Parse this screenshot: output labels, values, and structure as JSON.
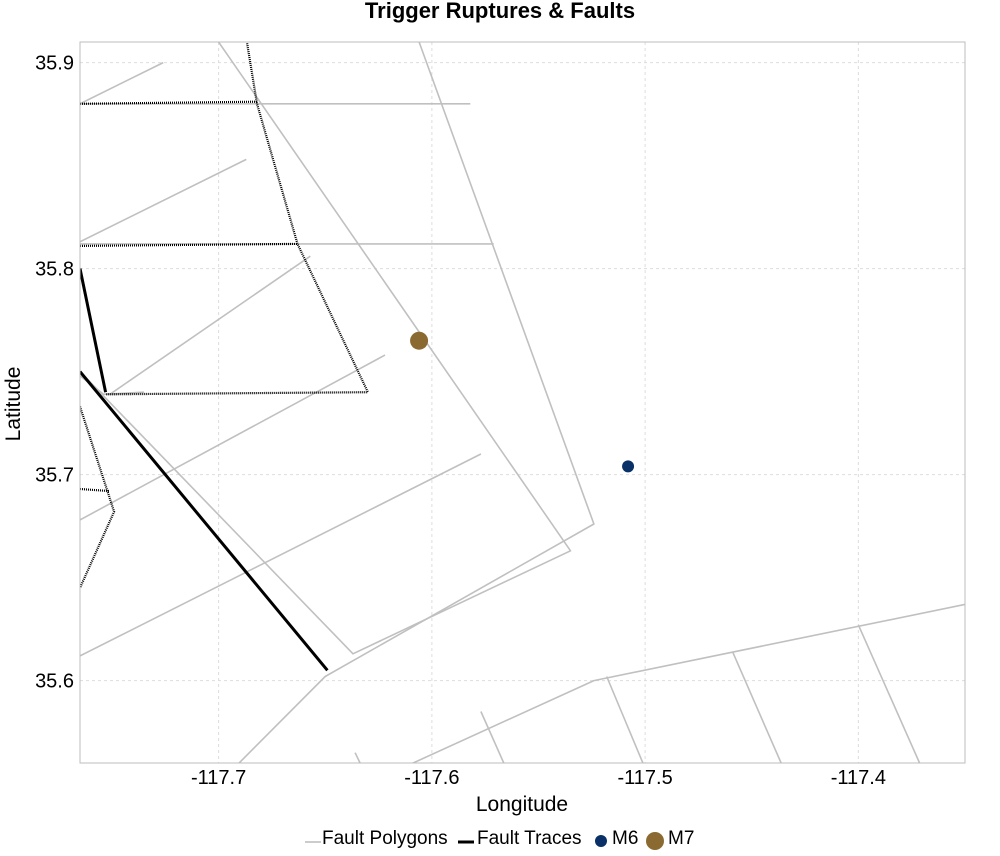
{
  "chart_data": {
    "type": "map",
    "title": "Trigger Ruptures & Faults",
    "xlabel": "Longitude",
    "ylabel": "Latitude",
    "xlim": [
      -117.765,
      -117.35
    ],
    "ylim": [
      35.56,
      35.91
    ],
    "xticks": [
      -117.7,
      -117.6,
      -117.5,
      -117.4
    ],
    "yticks": [
      35.6,
      35.7,
      35.8,
      35.9
    ],
    "xtick_labels": [
      "-117.7",
      "-117.6",
      "-117.5",
      "-117.4"
    ],
    "ytick_labels": [
      "35.6",
      "35.7",
      "35.8",
      "35.9"
    ],
    "grid": true,
    "colors": {
      "polygon": "#c0c0c0",
      "trace": "#000000",
      "m6": "#0a3068",
      "m7": "#8a6a30",
      "grid": "#dddddd"
    },
    "polygons": [
      [
        [
          -117.765,
          35.88
        ],
        [
          -117.726,
          35.9
        ]
      ],
      [
        [
          -117.765,
          35.813
        ],
        [
          -117.687,
          35.853
        ]
      ],
      [
        [
          -117.751,
          35.739
        ],
        [
          -117.657,
          35.806
        ]
      ],
      [
        [
          -117.765,
          35.678
        ],
        [
          -117.622,
          35.758
        ]
      ],
      [
        [
          -117.765,
          35.612
        ],
        [
          -117.577,
          35.71
        ]
      ],
      [
        [
          -117.765,
          35.88
        ],
        [
          -117.582,
          35.88
        ]
      ],
      [
        [
          -117.765,
          35.812
        ],
        [
          -117.571,
          35.812
        ]
      ],
      [
        [
          -117.765,
          35.748
        ],
        [
          -117.754,
          35.739
        ],
        [
          -117.735,
          35.74
        ]
      ],
      [
        [
          -117.7,
          35.91
        ],
        [
          -117.535,
          35.663
        ],
        [
          -117.637,
          35.613
        ],
        [
          -117.765,
          35.75
        ]
      ],
      [
        [
          -117.606,
          35.91
        ],
        [
          -117.524,
          35.676
        ],
        [
          -117.65,
          35.602
        ],
        [
          -117.7,
          35.55
        ]
      ],
      [
        [
          -117.63,
          35.55
        ],
        [
          -117.524,
          35.6
        ],
        [
          -117.35,
          35.637
        ]
      ],
      [
        [
          -117.636,
          35.565
        ],
        [
          -117.629,
          35.55
        ]
      ],
      [
        [
          -117.577,
          35.585
        ],
        [
          -117.562,
          35.55
        ]
      ],
      [
        [
          -117.518,
          35.602
        ],
        [
          -117.497,
          35.55
        ]
      ],
      [
        [
          -117.459,
          35.614
        ],
        [
          -117.432,
          35.55
        ]
      ],
      [
        [
          -117.4,
          35.627
        ],
        [
          -117.367,
          35.55
        ]
      ]
    ],
    "traces": [
      {
        "style": "solid",
        "points": [
          [
            -117.765,
            35.8
          ],
          [
            -117.753,
            35.74
          ]
        ]
      },
      {
        "style": "solid",
        "points": [
          [
            -117.765,
            35.75
          ],
          [
            -117.649,
            35.605
          ]
        ]
      },
      {
        "style": "dotted",
        "points": [
          [
            -117.688,
            35.918
          ],
          [
            -117.682,
            35.88
          ],
          [
            -117.663,
            35.812
          ],
          [
            -117.63,
            35.74
          ],
          [
            -117.753,
            35.739
          ]
        ]
      },
      {
        "style": "dotted",
        "points": [
          [
            -117.765,
            35.88
          ],
          [
            -117.682,
            35.881
          ]
        ]
      },
      {
        "style": "dotted",
        "points": [
          [
            -117.765,
            35.811
          ],
          [
            -117.663,
            35.812
          ]
        ]
      },
      {
        "style": "dotted",
        "points": [
          [
            -117.765,
            35.733
          ],
          [
            -117.749,
            35.682
          ],
          [
            -117.765,
            35.645
          ]
        ]
      },
      {
        "style": "dotted",
        "points": [
          [
            -117.765,
            35.693
          ],
          [
            -117.751,
            35.692
          ]
        ]
      }
    ],
    "events": [
      {
        "name": "M6",
        "lon": -117.508,
        "lat": 35.704,
        "color": "#0a3068",
        "radius": 6
      },
      {
        "name": "M7",
        "lon": -117.606,
        "lat": 35.765,
        "color": "#8a6a30",
        "radius": 9
      }
    ],
    "legend": [
      {
        "label": "Fault Polygons",
        "kind": "line",
        "color": "#c0c0c0"
      },
      {
        "label": "Fault Traces",
        "kind": "line",
        "color": "#000000"
      },
      {
        "label": "M6",
        "kind": "dot",
        "color": "#0a3068"
      },
      {
        "label": "M7",
        "kind": "dot",
        "color": "#8a6a30"
      }
    ],
    "legend_position": "bottom-center"
  }
}
